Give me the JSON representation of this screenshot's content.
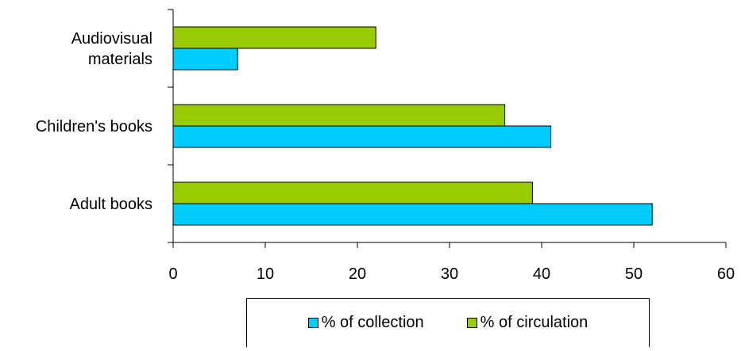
{
  "chart_data": {
    "type": "bar",
    "orientation": "horizontal",
    "categories": [
      "Adult books",
      "Children's books",
      "Audiovisual materials"
    ],
    "category_label_lines": [
      [
        "Adult books"
      ],
      [
        "Children's books"
      ],
      [
        "Audiovisual",
        "materials"
      ]
    ],
    "series": [
      {
        "name": "% of collection",
        "values": [
          52,
          41,
          7
        ],
        "color": "#00CCFF"
      },
      {
        "name": "% of circulation",
        "values": [
          39,
          36,
          22
        ],
        "color": "#99CC00"
      }
    ],
    "x_ticks": [
      "0",
      "10",
      "20",
      "30",
      "40",
      "50",
      "60"
    ],
    "xlim": [
      0,
      60
    ],
    "title": "",
    "xlabel": "",
    "ylabel": "",
    "grid": false,
    "legend_position": "bottom"
  }
}
